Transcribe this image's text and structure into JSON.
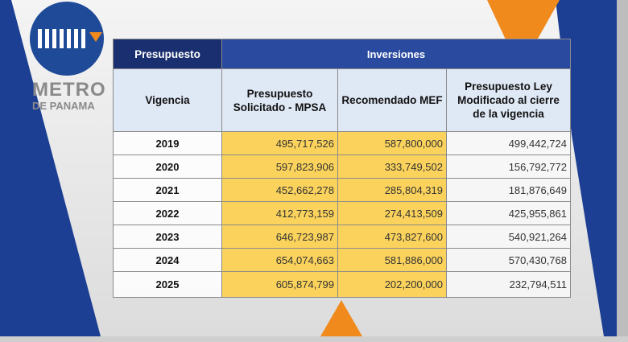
{
  "logo": {
    "line1": "METRO",
    "line2": "DE PANAMA"
  },
  "colors": {
    "brand_blue": "#1c3f93",
    "accent_orange": "#f08a1c",
    "highlight_yellow": "#fbd35c",
    "header_navy": "#1a2f6f"
  },
  "table": {
    "group_headers": [
      "Presupuesto",
      "Inversiones"
    ],
    "columns": [
      "Vigencia",
      "Presupuesto Solicitado - MPSA",
      "Recomendado MEF",
      "Presupuesto Ley Modificado al cierre de la vigencia"
    ],
    "rows": [
      [
        "2019",
        "495,717,526",
        "587,800,000",
        "499,442,724"
      ],
      [
        "2020",
        "597,823,906",
        "333,749,502",
        "156,792,772"
      ],
      [
        "2021",
        "452,662,278",
        "285,804,319",
        "181,876,649"
      ],
      [
        "2022",
        "412,773,159",
        "274,413,509",
        "425,955,861"
      ],
      [
        "2023",
        "646,723,987",
        "473,827,600",
        "540,921,264"
      ],
      [
        "2024",
        "654,074,663",
        "581,886,000",
        "570,430,768"
      ],
      [
        "2025",
        "605,874,799",
        "202,200,000",
        "232,794,511"
      ]
    ]
  }
}
